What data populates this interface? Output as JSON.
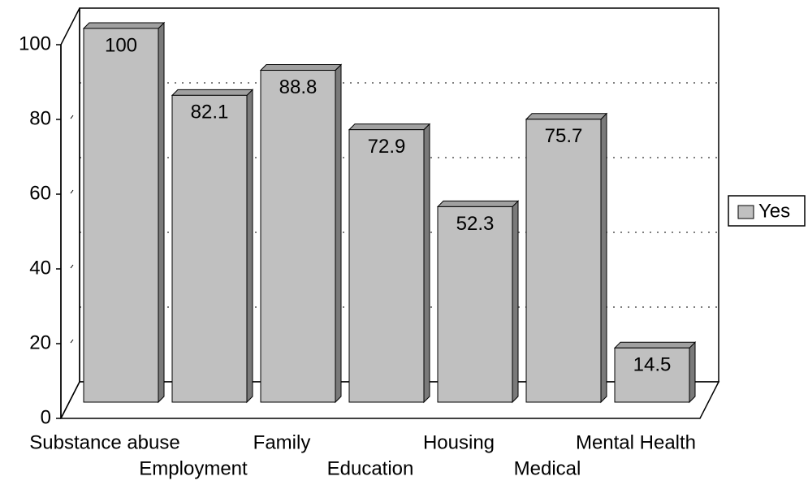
{
  "chart_data": {
    "type": "bar",
    "categories": [
      "Substance abuse",
      "Employment",
      "Family",
      "Education",
      "Housing",
      "Medical",
      "Mental Health"
    ],
    "series": [
      {
        "name": "Yes",
        "color": "#c0c0c0",
        "values": [
          100,
          82.1,
          88.8,
          72.9,
          52.3,
          75.7,
          14.5
        ]
      }
    ],
    "ylim": [
      0,
      100
    ],
    "yticks": [
      0,
      20,
      40,
      60,
      80,
      100
    ],
    "grid": true,
    "legend": "right"
  }
}
